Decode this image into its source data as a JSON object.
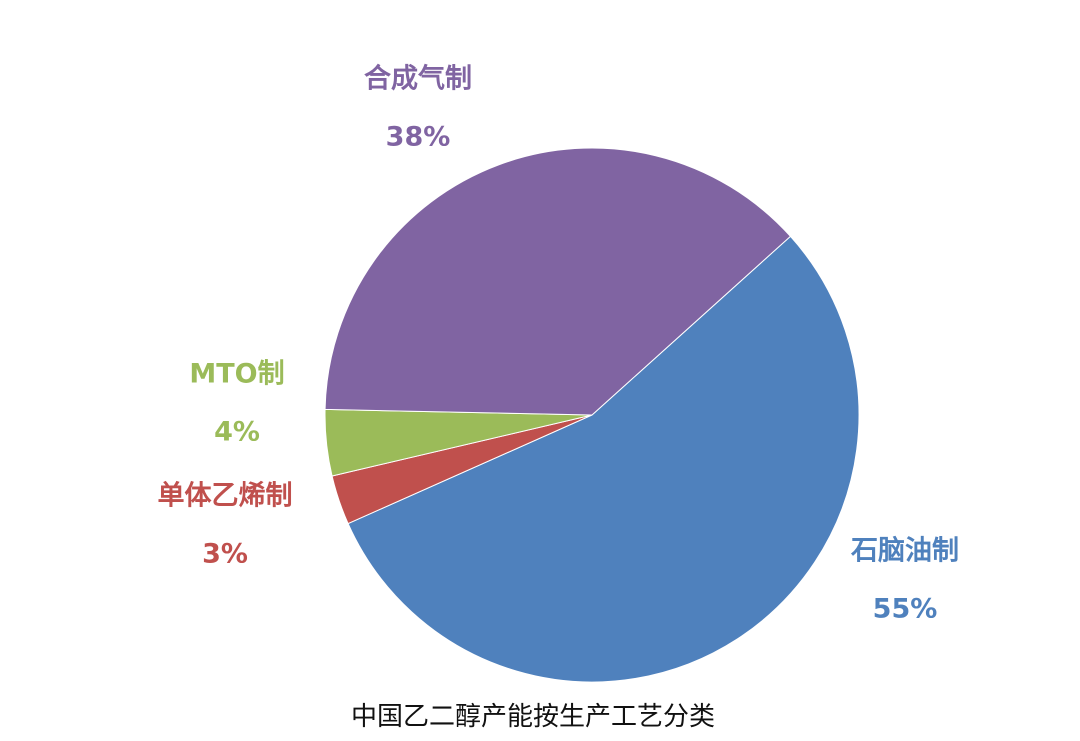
{
  "chart_data": {
    "type": "pie",
    "title": "中国乙二醇产能按生产工艺分类",
    "categories": [
      "石脑油制",
      "单体乙烯制",
      "MTO制",
      "合成气制"
    ],
    "values": [
      55,
      3,
      4,
      38
    ],
    "value_labels": [
      "55%",
      "3%",
      "4%",
      "38%"
    ],
    "colors": [
      "#4f81bd",
      "#c0504d",
      "#9bbb59",
      "#8064a2"
    ]
  }
}
